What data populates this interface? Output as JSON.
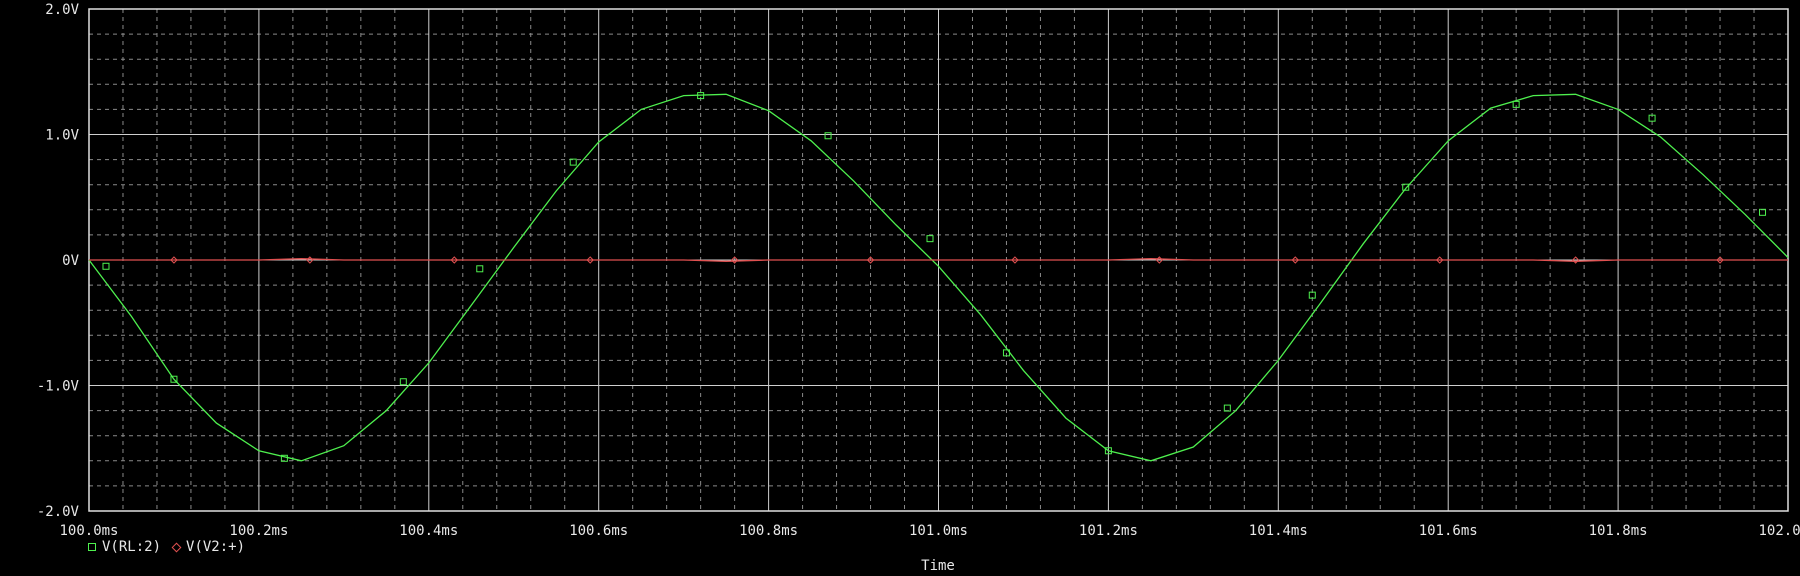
{
  "chart_data": {
    "type": "line",
    "title": "",
    "xlabel": "Time",
    "ylabel": "",
    "xlim": [
      100.0,
      102.0
    ],
    "ylim": [
      -2.0,
      2.0
    ],
    "x_unit": "ms",
    "x_ticks": [
      100.0,
      100.2,
      100.4,
      100.6,
      100.8,
      101.0,
      101.2,
      101.4,
      101.6,
      101.8,
      102.0
    ],
    "x_tick_labels": [
      "100.0ms",
      "100.2ms",
      "100.4ms",
      "100.6ms",
      "100.8ms",
      "101.0ms",
      "101.2ms",
      "101.4ms",
      "101.6ms",
      "101.8ms",
      "102.0ms"
    ],
    "y_ticks": [
      -2.0,
      -1.0,
      0,
      1.0,
      2.0
    ],
    "y_tick_labels": [
      "-2.0V",
      "-1.0V",
      "0V",
      "1.0V",
      "2.0V"
    ],
    "grid": true,
    "legend_position": "bottom-left",
    "series": [
      {
        "name": "V(RL:2)",
        "color": "#4ef04e",
        "marker": "square",
        "x": [
          100.0,
          100.05,
          100.1,
          100.15,
          100.2,
          100.25,
          100.3,
          100.35,
          100.4,
          100.45,
          100.5,
          100.55,
          100.6,
          100.65,
          100.7,
          100.75,
          100.8,
          100.85,
          100.9,
          100.95,
          101.0,
          101.05,
          101.1,
          101.15,
          101.2,
          101.25,
          101.3,
          101.35,
          101.4,
          101.45,
          101.5,
          101.55,
          101.6,
          101.65,
          101.7,
          101.75,
          101.8,
          101.85,
          101.9,
          101.95,
          102.0
        ],
        "y": [
          0.0,
          -0.45,
          -0.95,
          -1.3,
          -1.52,
          -1.6,
          -1.48,
          -1.2,
          -0.82,
          -0.36,
          0.1,
          0.55,
          0.94,
          1.2,
          1.31,
          1.32,
          1.19,
          0.95,
          0.63,
          0.28,
          -0.05,
          -0.44,
          -0.88,
          -1.26,
          -1.52,
          -1.6,
          -1.49,
          -1.2,
          -0.8,
          -0.34,
          0.13,
          0.57,
          0.95,
          1.21,
          1.31,
          1.32,
          1.2,
          0.98,
          0.68,
          0.36,
          0.02
        ],
        "marker_x": [
          100.02,
          100.1,
          100.23,
          100.37,
          100.46,
          100.57,
          100.72,
          100.87,
          100.99,
          101.08,
          101.2,
          101.34,
          101.44,
          101.55,
          101.68,
          101.84,
          101.97
        ],
        "marker_y": [
          -0.05,
          -0.95,
          -1.58,
          -0.97,
          -0.07,
          0.78,
          1.31,
          0.99,
          0.17,
          -0.74,
          -1.52,
          -1.18,
          -0.28,
          0.58,
          1.24,
          1.13,
          0.38
        ]
      },
      {
        "name": "V(V2:+)",
        "color": "#e05050",
        "marker": "diamond",
        "x": [
          100.0,
          100.2,
          100.25,
          100.3,
          100.5,
          100.7,
          100.75,
          100.8,
          101.0,
          101.2,
          101.25,
          101.3,
          101.5,
          101.7,
          101.75,
          101.8,
          102.0
        ],
        "y": [
          0.0,
          0.0,
          0.01,
          0.0,
          0.0,
          0.0,
          -0.01,
          0.0,
          0.0,
          0.0,
          0.01,
          0.0,
          0.0,
          0.0,
          -0.01,
          0.0,
          0.0
        ],
        "marker_x": [
          100.1,
          100.26,
          100.43,
          100.59,
          100.76,
          100.92,
          101.09,
          101.26,
          101.42,
          101.59,
          101.75,
          101.92
        ],
        "marker_y": [
          0,
          0,
          0,
          0,
          0,
          0,
          0,
          0,
          0,
          0,
          0,
          0
        ]
      }
    ]
  }
}
